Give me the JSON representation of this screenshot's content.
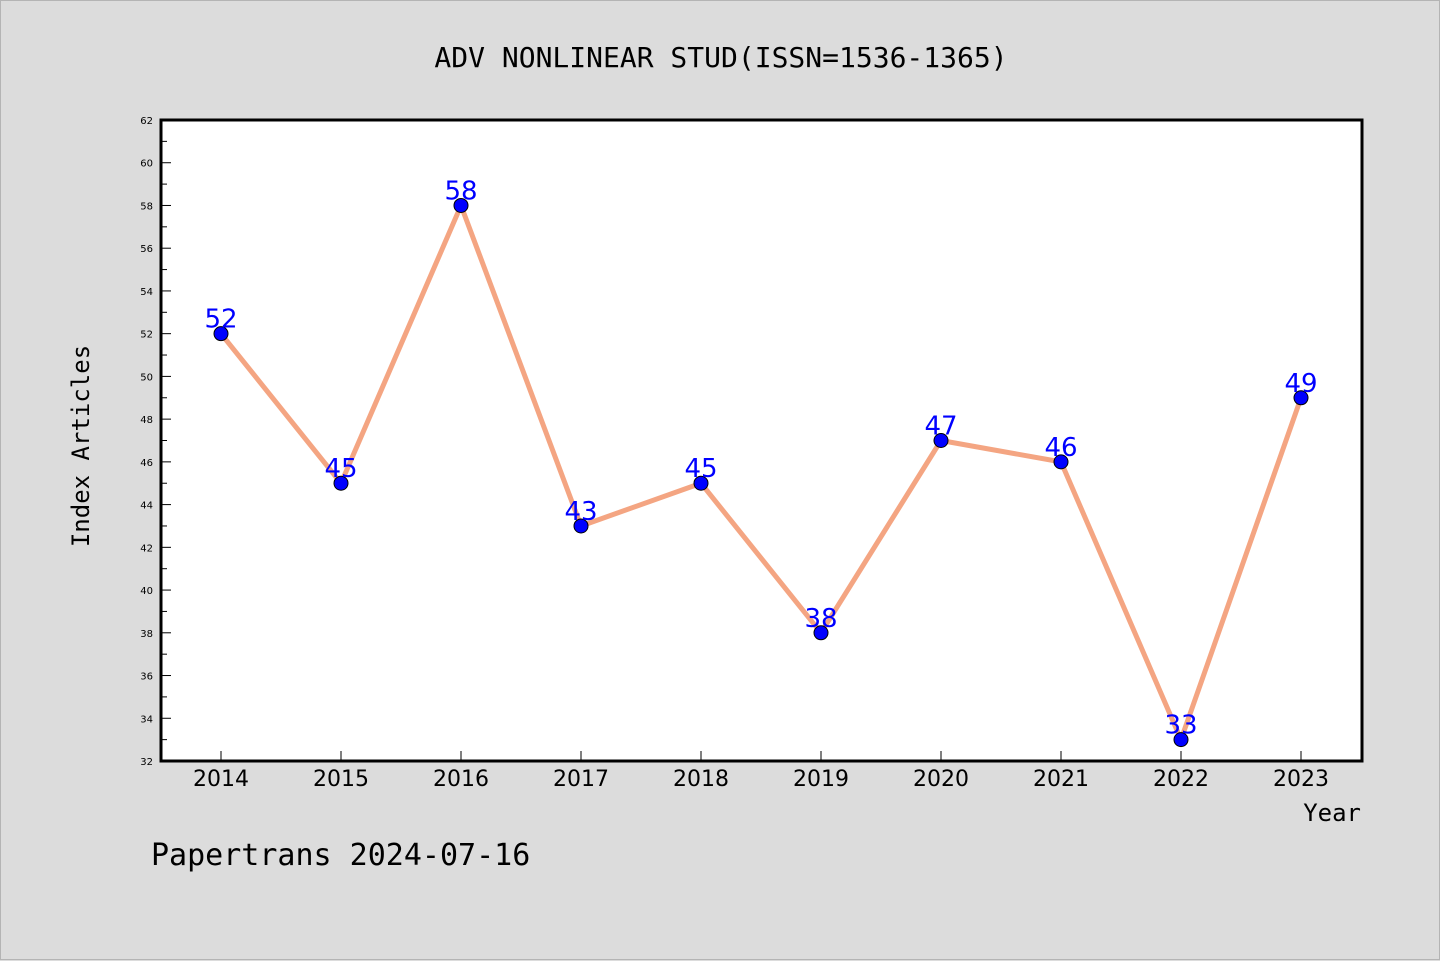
{
  "chart_data": {
    "type": "line",
    "title": "ADV NONLINEAR STUD(ISSN=1536-1365)",
    "xlabel": "Year",
    "ylabel": "Index Articles",
    "categories": [
      "2014",
      "2015",
      "2016",
      "2017",
      "2018",
      "2019",
      "2020",
      "2021",
      "2022",
      "2023"
    ],
    "series": [
      {
        "values": [
          52,
          45,
          58,
          43,
          45,
          38,
          47,
          46,
          33,
          49
        ]
      }
    ],
    "ylim": [
      32,
      62
    ],
    "yticks": [
      32,
      34,
      36,
      38,
      40,
      42,
      44,
      46,
      48,
      50,
      52,
      54,
      56,
      58,
      60,
      62
    ],
    "grid": false,
    "data_labels": true,
    "colors": {
      "line": "#f4a582",
      "marker": "#0000ff",
      "label": "#0000ff",
      "background": "#dcdcdc",
      "plot_background": "#ffffff"
    }
  },
  "footer": "Papertrans 2024-07-16"
}
